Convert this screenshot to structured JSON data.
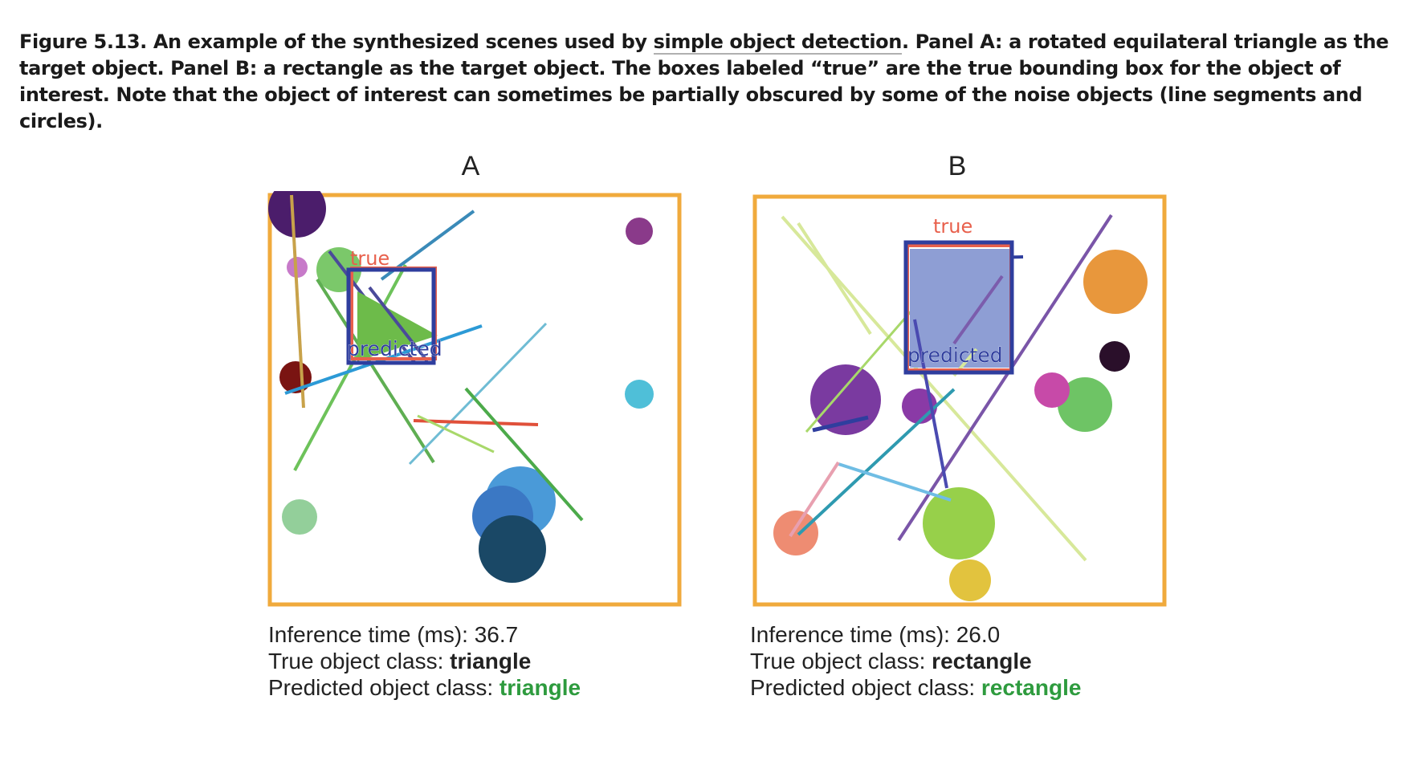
{
  "caption": {
    "before": "Figure 5.13. An example of the synthesized scenes used by ",
    "link": "simple object detection",
    "after": ". Panel A: a rotated equilateral triangle as the target object. Panel B: a rectangle as the target object. The boxes labeled “true” are the true bounding box for the object of interest. Note that the object of interest can sometimes be partially obscured by some of the noise objects (line segments and circles)."
  },
  "panels": [
    {
      "letter": "A",
      "true_label": "true",
      "predicted_label": "predicted",
      "inference_label": "Inference time (ms): ",
      "inference_value": "36.7",
      "true_class_label": "True object class: ",
      "true_class_value": "triangle",
      "pred_class_label": "Predicted object class: ",
      "pred_class_value": "triangle"
    },
    {
      "letter": "B",
      "true_label": "true",
      "predicted_label": "predicted",
      "inference_label": "Inference time (ms): ",
      "inference_value": "26.0",
      "true_class_label": "True object class: ",
      "true_class_value": "rectangle",
      "pred_class_label": "Predicted object class: ",
      "pred_class_value": "rectangle"
    }
  ],
  "colors": {
    "frame": "#f0aa3c",
    "true_box": "#e8604c",
    "predicted_box": "#2f3e9e",
    "correct_prediction": "#2e9b3e"
  }
}
